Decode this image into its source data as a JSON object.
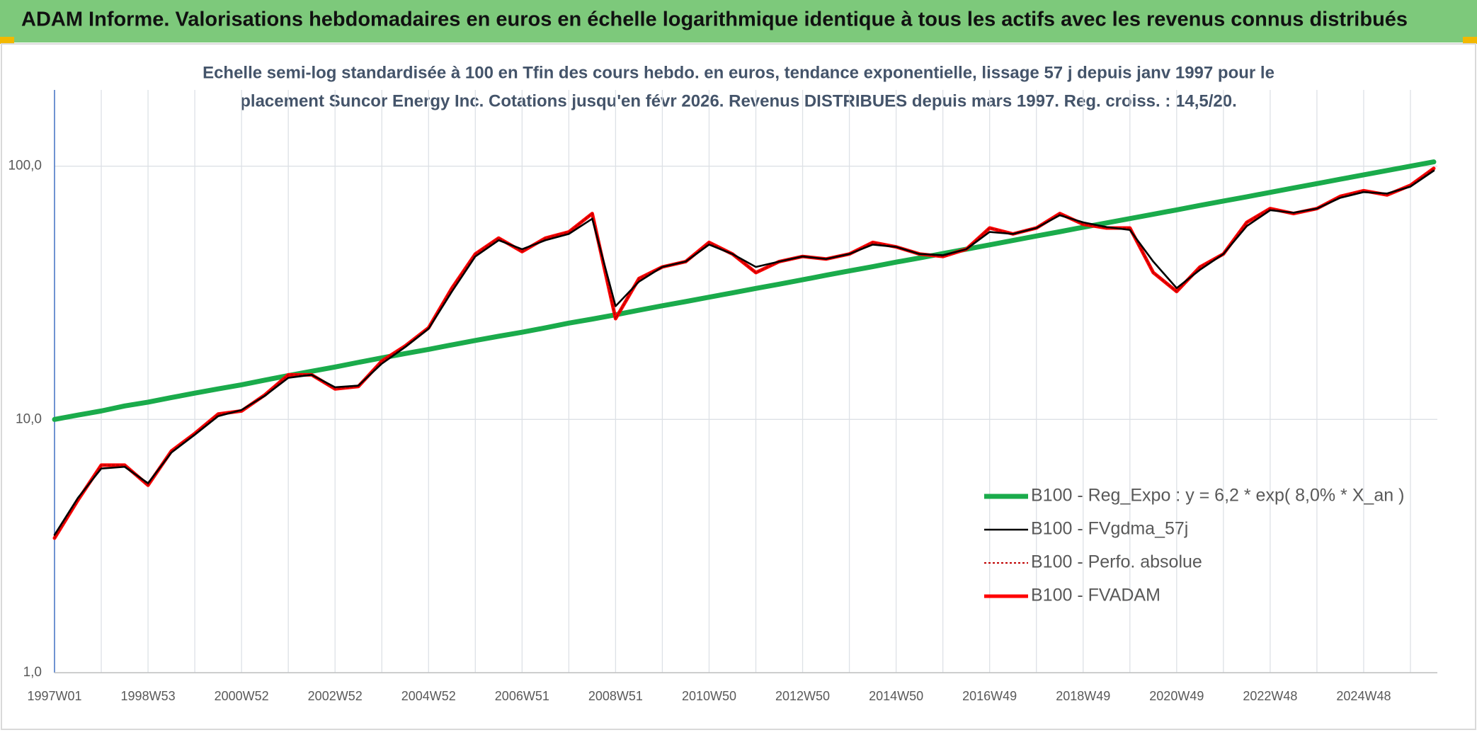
{
  "chart_data": {
    "type": "line",
    "title": "ADAM Informe. Valorisations hebdomadaires en euros en échelle logarithmique identique à tous les actifs avec les revenus connus distribués",
    "subtitle": [
      "Echelle semi-log standardisée à 100 en Tfin des cours hebdo. en euros, tendance exponentielle, lissage 57 j depuis janv 1997 pour le",
      "placement Suncor Energy Inc. Cotations jusqu'en févr 2026. Revenus DISTRIBUES depuis mars 1997. Reg. croiss. : 14,5/20."
    ],
    "log_scale": true,
    "grid": true,
    "legend": "lower right",
    "ylim": [
      1,
      200
    ],
    "yticks": [
      {
        "value": 1,
        "label": "1,0"
      },
      {
        "value": 10,
        "label": "10,0"
      },
      {
        "value": 100,
        "label": "100,0"
      }
    ],
    "categories": [
      "1997W01",
      null,
      null,
      null,
      "1998W53",
      null,
      null,
      null,
      "2000W52",
      null,
      null,
      null,
      "2002W52",
      null,
      null,
      null,
      "2004W52",
      null,
      null,
      null,
      "2006W51",
      null,
      null,
      null,
      "2008W51",
      null,
      null,
      null,
      "2010W50",
      null,
      null,
      null,
      "2012W50",
      null,
      null,
      null,
      "2014W50",
      null,
      null,
      null,
      "2016W49",
      null,
      null,
      null,
      "2018W49",
      null,
      null,
      null,
      "2020W49",
      null,
      null,
      null,
      "2022W48",
      null,
      null,
      null,
      "2024W48",
      null,
      null,
      null
    ],
    "series": [
      {
        "name": "B100 - Reg_Expo : y = 6,2 * exp( 8,0% *  X_an )",
        "color": "#1aab4b",
        "line_style": "solid",
        "values": [
          10.0,
          10.4,
          10.8,
          11.3,
          11.7,
          12.2,
          12.7,
          13.2,
          13.7,
          14.3,
          14.9,
          15.5,
          16.1,
          16.8,
          17.5,
          18.2,
          18.9,
          19.7,
          20.5,
          21.3,
          22.1,
          23.0,
          24.0,
          24.9,
          25.9,
          27.0,
          28.1,
          29.2,
          30.4,
          31.6,
          32.9,
          34.2,
          35.6,
          37.1,
          38.6,
          40.1,
          41.8,
          43.4,
          45.2,
          47.0,
          48.9,
          50.9,
          53.0,
          55.1,
          57.4,
          59.7,
          62.1,
          64.6,
          67.2,
          70.0,
          72.8,
          75.7,
          78.8,
          82.0,
          85.3,
          88.8,
          92.4,
          96.1,
          100.0,
          104.0
        ]
      },
      {
        "name": "B100 - FVgdma_57j",
        "color": "#000000",
        "line_style": "solid",
        "values": [
          3.5,
          4.9,
          6.4,
          6.5,
          5.6,
          7.4,
          8.7,
          10.3,
          10.9,
          12.4,
          14.6,
          15.0,
          13.4,
          13.6,
          16.6,
          19.3,
          22.8,
          32.0,
          44.0,
          51.0,
          47.0,
          51.0,
          54.0,
          62.0,
          28.0,
          35.0,
          40.0,
          42.0,
          49.0,
          45.0,
          40.0,
          42.0,
          44.0,
          43.0,
          45.0,
          49.0,
          48.0,
          45.0,
          44.5,
          47.0,
          55.0,
          54.0,
          57.0,
          64.0,
          60.0,
          57.5,
          56.0,
          42.0,
          33.0,
          39.0,
          45.0,
          58.0,
          67.0,
          65.5,
          68.0,
          75.0,
          79.0,
          78.0,
          83.0,
          96.0
        ]
      },
      {
        "name": "B100 - Perfo. absolue",
        "color": "#c00000",
        "line_style": "dotted",
        "values": [
          3.4,
          4.8,
          6.6,
          6.6,
          5.5,
          7.5,
          8.8,
          10.5,
          10.8,
          12.5,
          15.0,
          15.0,
          13.2,
          13.5,
          17.0,
          19.5,
          23.0,
          33.0,
          45.0,
          52.0,
          46.0,
          52.0,
          55.0,
          65.0,
          25.0,
          36.0,
          40.0,
          42.0,
          50.0,
          45.0,
          38.0,
          42.0,
          44.0,
          43.0,
          45.0,
          50.0,
          48.0,
          45.0,
          44.0,
          47.0,
          57.0,
          54.0,
          57.0,
          65.0,
          59.0,
          57.0,
          57.0,
          38.0,
          32.0,
          40.0,
          45.0,
          60.0,
          68.0,
          65.0,
          68.0,
          76.0,
          80.0,
          77.0,
          84.0,
          98.0
        ]
      },
      {
        "name": "B100 - FVADAM",
        "color": "#ff0000",
        "line_style": "solid",
        "values": [
          3.4,
          4.8,
          6.6,
          6.6,
          5.5,
          7.5,
          8.8,
          10.5,
          10.8,
          12.5,
          15.0,
          15.0,
          13.2,
          13.5,
          17.0,
          19.5,
          23.0,
          33.0,
          45.0,
          52.0,
          46.0,
          52.0,
          55.0,
          65.0,
          25.0,
          36.0,
          40.0,
          42.0,
          50.0,
          45.0,
          38.0,
          42.0,
          44.0,
          43.0,
          45.0,
          50.0,
          48.0,
          45.0,
          44.0,
          47.0,
          57.0,
          54.0,
          57.0,
          65.0,
          59.0,
          57.0,
          57.0,
          38.0,
          32.0,
          40.0,
          45.0,
          60.0,
          68.0,
          65.0,
          68.0,
          76.0,
          80.0,
          77.0,
          84.0,
          98.0
        ]
      }
    ]
  }
}
